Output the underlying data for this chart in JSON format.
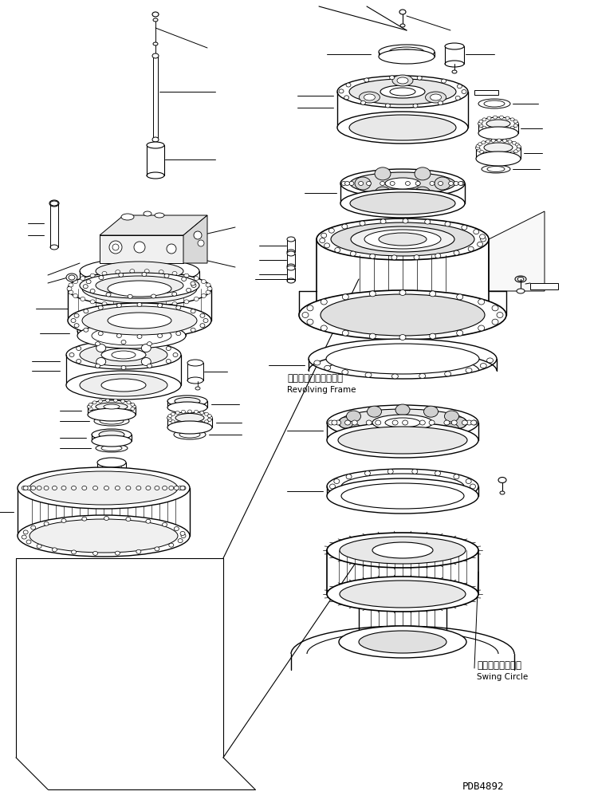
{
  "background_color": "#ffffff",
  "line_color": "#000000",
  "text_color": "#000000",
  "label_revolving_frame_jp": "レボルビングフレーム",
  "label_revolving_frame_en": "Revolving Frame",
  "label_swing_circle_jp": "スイングサークル",
  "label_swing_circle_en": "Swing Circle",
  "label_pdb": "PDB4892",
  "figsize": [
    7.4,
    10.07
  ],
  "dpi": 100
}
